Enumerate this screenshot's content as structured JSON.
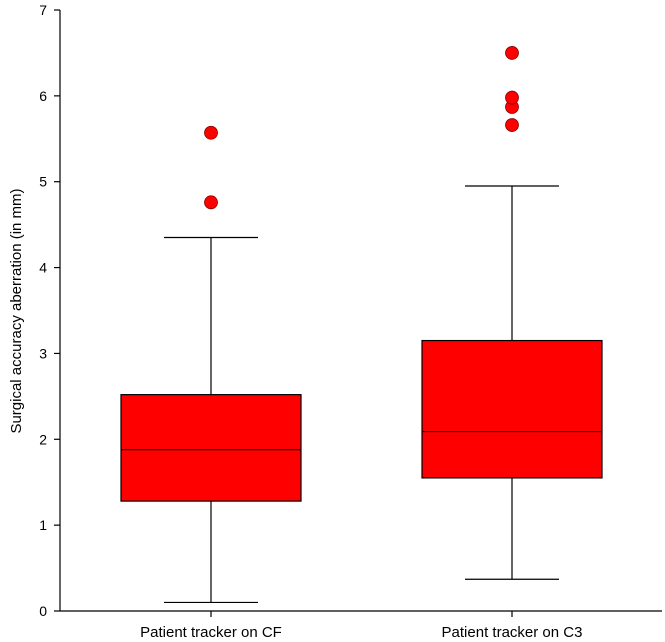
{
  "chart_data": {
    "type": "boxplot",
    "title": "",
    "xlabel": "",
    "ylabel": "Surgical accuracy aberration (in mm)",
    "ylim": [
      0,
      7
    ],
    "yticks": [
      0,
      1,
      2,
      3,
      4,
      5,
      6,
      7
    ],
    "grid": false,
    "box_color": "#ff0000",
    "outlier_color": "#ff0000",
    "series": [
      {
        "name": "Patient tracker on CF",
        "whisker_low": 0.1,
        "q1": 1.28,
        "median": 1.88,
        "q3": 2.52,
        "whisker_high": 4.35,
        "outliers": [
          4.76,
          5.57
        ]
      },
      {
        "name": "Patient tracker on C3",
        "whisker_low": 0.37,
        "q1": 1.55,
        "median": 2.09,
        "q3": 3.15,
        "whisker_high": 4.95,
        "outliers": [
          5.66,
          5.87,
          5.98,
          6.5
        ]
      }
    ]
  }
}
